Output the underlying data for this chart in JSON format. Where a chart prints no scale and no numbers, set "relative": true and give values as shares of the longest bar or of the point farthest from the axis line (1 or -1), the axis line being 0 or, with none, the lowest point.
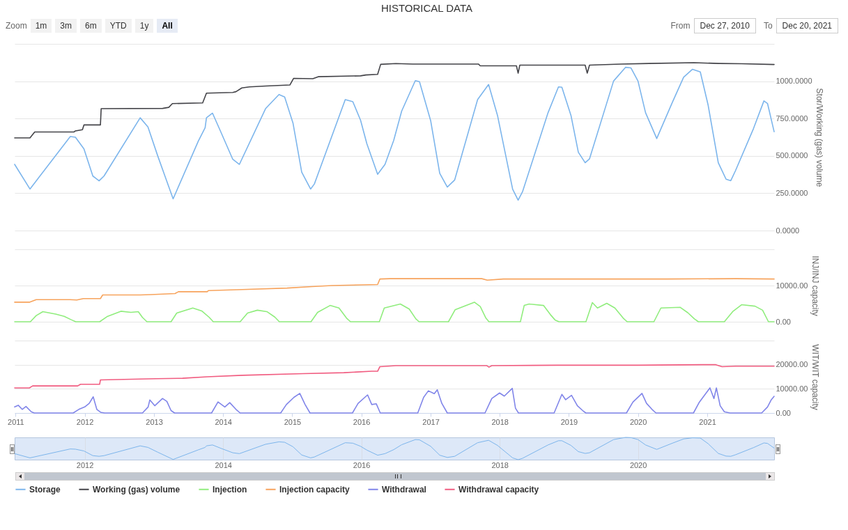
{
  "chart_data": [
    {
      "type": "line",
      "title": "HISTORICAL DATA",
      "annotations": [
        "Zoom",
        "1m",
        "3m",
        "6m",
        "YTD",
        "1y",
        "All",
        "From",
        "Dec 27, 2010",
        "To",
        "Dec 20, 2021"
      ],
      "ylabel": "Stor/Working (gas) volume",
      "xlim": [
        "2010-12-27",
        "2021-12-20"
      ],
      "ylim": [
        0,
        1250
      ],
      "yticks": [
        {
          "value": 0,
          "label": "0.0000"
        },
        {
          "value": 250,
          "label": "250.0000"
        },
        {
          "value": 500,
          "label": "500.0000"
        },
        {
          "value": 750,
          "label": "750.0000"
        },
        {
          "value": 1000,
          "label": "1000.0000"
        },
        {
          "value": 1250,
          "label": null
        }
      ],
      "grid": "y",
      "legend": "bottom",
      "tick_labels": "y",
      "series": [
        {
          "name": "Storage",
          "color": "#7cb5ec",
          "x": [
            "2010-12-27",
            "2011-03-18",
            "2011-10-17",
            "2011-11-13",
            "2011-12-28",
            "2012-02-13",
            "2012-03-17",
            "2012-04-12",
            "2012-10-20",
            "2012-11-30",
            "2013-01-22",
            "2013-04-12",
            "2013-08-23",
            "2013-09-28",
            "2013-10-05",
            "2013-11-06",
            "2013-12-20",
            "2014-02-21",
            "2014-03-28",
            "2014-08-13",
            "2014-10-23",
            "2014-11-22",
            "2015-01-05",
            "2015-02-20",
            "2015-04-08",
            "2015-04-28",
            "2015-10-08",
            "2015-11-17",
            "2015-12-28",
            "2016-01-30",
            "2016-03-27",
            "2016-05-05",
            "2016-06-20",
            "2016-08-01",
            "2016-10-12",
            "2016-11-03",
            "2017-01-01",
            "2017-02-18",
            "2017-03-30",
            "2017-05-08",
            "2017-09-06",
            "2017-11-03",
            "2017-12-20",
            "2018-03-10",
            "2018-04-08",
            "2018-05-01",
            "2018-09-13",
            "2018-11-07",
            "2018-11-25",
            "2019-01-12",
            "2019-02-20",
            "2019-03-28",
            "2019-04-20",
            "2019-08-25",
            "2019-10-27",
            "2019-11-25",
            "2020-01-01",
            "2020-02-10",
            "2020-04-09",
            "2020-07-01",
            "2020-08-29",
            "2020-10-15",
            "2020-11-25",
            "2021-01-05",
            "2021-02-28",
            "2021-04-10",
            "2021-05-05",
            "2021-05-30",
            "2021-09-02",
            "2021-10-27",
            "2021-11-15",
            "2021-12-20"
          ],
          "values": [
            443,
            278,
            630,
            625,
            547,
            365,
            333,
            365,
            755,
            694,
            495,
            212,
            599,
            689,
            755,
            786,
            660,
            477,
            443,
            816,
            911,
            894,
            720,
            391,
            278,
            312,
            877,
            863,
            738,
            582,
            377,
            443,
            604,
            800,
            1004,
            997,
            736,
            383,
            291,
            339,
            877,
            978,
            771,
            277,
            203,
            259,
            789,
            962,
            960,
            771,
            524,
            454,
            480,
            1001,
            1093,
            1089,
            1001,
            789,
            616,
            860,
            1027,
            1080,
            1062,
            842,
            454,
            344,
            334,
            401,
            683,
            868,
            851,
            662
          ]
        },
        {
          "name": "Working (gas) volume",
          "color": "#434348",
          "x": [
            "2010-12-27",
            "2011-03-18",
            "2011-04-12",
            "2011-11-06",
            "2011-11-13",
            "2011-12-20",
            "2011-12-28",
            "2012-03-24",
            "2012-03-28",
            "2013-02-16",
            "2013-03-20",
            "2013-04-08",
            "2013-09-15",
            "2013-10-05",
            "2014-02-21",
            "2014-03-10",
            "2014-04-10",
            "2014-05-20",
            "2014-08-15",
            "2014-12-20",
            "2015-01-08",
            "2015-04-20",
            "2015-05-18",
            "2015-12-28",
            "2016-01-25",
            "2016-03-27",
            "2016-04-12",
            "2016-07-01",
            "2016-09-28",
            "2017-09-10",
            "2017-09-20",
            "2018-03-30",
            "2018-04-08",
            "2018-04-17",
            "2019-03-28",
            "2019-04-08",
            "2019-04-20",
            "2019-10-05",
            "2020-03-01",
            "2020-10-22",
            "2021-03-01",
            "2021-07-01",
            "2021-12-20"
          ],
          "values": [
            620,
            620,
            660,
            660,
            667,
            675,
            707,
            707,
            816,
            818,
            825,
            850,
            855,
            920,
            925,
            930,
            955,
            962,
            968,
            975,
            1019,
            1017,
            1030,
            1036,
            1042,
            1046,
            1113,
            1118,
            1115,
            1115,
            1103,
            1103,
            1054,
            1108,
            1108,
            1054,
            1108,
            1115,
            1119,
            1124,
            1119,
            1117,
            1112
          ]
        }
      ]
    },
    {
      "type": "line",
      "ylabel": "INJ/INJ capacity",
      "xlim": [
        "2010-12-27",
        "2021-12-20"
      ],
      "ylim": [
        0,
        20000
      ],
      "yticks": [
        {
          "value": 0,
          "label": "0.00"
        },
        {
          "value": 10000,
          "label": "10000.00"
        },
        {
          "value": 20000,
          "label": null
        }
      ],
      "grid": "y",
      "legend": "bottom",
      "tick_labels": "y",
      "series": [
        {
          "name": "Injection",
          "color": "#90ed7d",
          "x": [
            "2010-12-27",
            "2011-03-20",
            "2011-04-20",
            "2011-05-25",
            "2011-08-01",
            "2011-09-15",
            "2011-10-20",
            "2011-11-15",
            "2012-03-20",
            "2012-05-01",
            "2012-07-10",
            "2012-09-01",
            "2012-10-10",
            "2012-11-01",
            "2012-11-25",
            "2013-04-01",
            "2013-05-01",
            "2013-07-25",
            "2013-09-10",
            "2013-10-20",
            "2013-11-10",
            "2014-04-01",
            "2014-05-10",
            "2014-07-01",
            "2014-08-20",
            "2014-10-01",
            "2014-10-25",
            "2015-04-10",
            "2015-05-15",
            "2015-07-20",
            "2015-09-05",
            "2015-10-15",
            "2015-11-05",
            "2016-04-05",
            "2016-05-01",
            "2016-07-25",
            "2016-09-10",
            "2016-10-15",
            "2016-11-01",
            "2017-04-05",
            "2017-05-10",
            "2017-08-20",
            "2017-09-20",
            "2017-10-20",
            "2017-11-05",
            "2018-04-20",
            "2018-05-10",
            "2018-06-05",
            "2018-08-20",
            "2018-09-25",
            "2018-10-20",
            "2018-11-10",
            "2019-04-01",
            "2019-05-05",
            "2019-06-01",
            "2019-07-20",
            "2019-09-01",
            "2019-10-15",
            "2019-11-05",
            "2020-03-25",
            "2020-05-01",
            "2020-08-10",
            "2020-09-20",
            "2020-10-25",
            "2020-11-15",
            "2021-04-01",
            "2021-05-15",
            "2021-07-01",
            "2021-09-10",
            "2021-10-20",
            "2021-11-20",
            "2021-12-20"
          ],
          "values": [
            0,
            0,
            1700,
            2800,
            2100,
            1500,
            600,
            0,
            0,
            1500,
            2900,
            2600,
            2800,
            1200,
            0,
            0,
            2400,
            3800,
            3000,
            1200,
            0,
            0,
            2400,
            3200,
            2800,
            1300,
            0,
            0,
            2600,
            4500,
            3800,
            1000,
            0,
            0,
            3800,
            4900,
            3500,
            800,
            0,
            0,
            3300,
            5400,
            4200,
            1000,
            0,
            0,
            4500,
            4900,
            4500,
            2000,
            500,
            0,
            0,
            5300,
            3800,
            5100,
            3800,
            1000,
            0,
            0,
            3800,
            4000,
            2500,
            800,
            0,
            0,
            2800,
            4700,
            4300,
            3200,
            0,
            0
          ]
        },
        {
          "name": "Injection capacity",
          "color": "#f7a35c",
          "x": [
            "2010-12-27",
            "2011-03-15",
            "2011-04-20",
            "2011-10-15",
            "2011-11-20",
            "2011-12-25",
            "2012-03-24",
            "2012-04-05",
            "2012-10-20",
            "2012-12-15",
            "2013-04-22",
            "2013-05-10",
            "2013-10-10",
            "2013-10-15",
            "2014-04-12",
            "2014-12-05",
            "2015-04-15",
            "2015-07-30",
            "2016-03-27",
            "2016-04-08",
            "2016-06-01",
            "2017-09-28",
            "2017-10-27",
            "2018-01-20",
            "2019-06-01",
            "2020-06-01",
            "2021-06-01",
            "2021-12-20"
          ],
          "values": [
            5400,
            5400,
            6100,
            6100,
            6000,
            6400,
            6400,
            7400,
            7400,
            7500,
            7800,
            8300,
            8300,
            8600,
            8900,
            9300,
            9700,
            10000,
            10300,
            11800,
            11900,
            11900,
            11500,
            11800,
            11800,
            11800,
            11900,
            11800
          ]
        }
      ]
    },
    {
      "type": "line",
      "ylabel": "WIT/WIT capacity",
      "xlim": [
        "2010-12-27",
        "2021-12-20"
      ],
      "xticks": [
        "2011",
        "2012",
        "2013",
        "2014",
        "2015",
        "2016",
        "2017",
        "2018",
        "2019",
        "2020",
        "2021"
      ],
      "ylim": [
        0,
        30000
      ],
      "yticks": [
        {
          "value": 0,
          "label": "0.00"
        },
        {
          "value": 10000,
          "label": "10000.00"
        },
        {
          "value": 20000,
          "label": "20000.00"
        },
        {
          "value": 30000,
          "label": null
        }
      ],
      "grid": "y",
      "legend": "bottom",
      "series": [
        {
          "name": "Withdrawal",
          "color": "#8085e9",
          "x": [
            "2010-12-27",
            "2011-01-15",
            "2011-02-05",
            "2011-02-25",
            "2011-03-25",
            "2011-04-10",
            "2011-11-01",
            "2011-12-01",
            "2012-01-01",
            "2012-01-25",
            "2012-02-15",
            "2012-03-05",
            "2012-03-25",
            "2012-04-15",
            "2012-11-01",
            "2012-12-01",
            "2012-12-10",
            "2013-01-05",
            "2013-02-15",
            "2013-03-10",
            "2013-04-01",
            "2013-04-20",
            "2013-11-01",
            "2013-12-05",
            "2014-01-10",
            "2014-02-05",
            "2014-03-10",
            "2014-04-01",
            "2014-11-01",
            "2014-12-01",
            "2015-01-10",
            "2015-02-10",
            "2015-03-10",
            "2015-04-05",
            "2015-11-15",
            "2015-12-15",
            "2016-02-03",
            "2016-02-25",
            "2016-03-20",
            "2016-04-10",
            "2016-10-25",
            "2016-11-25",
            "2016-12-20",
            "2017-01-20",
            "2017-02-05",
            "2017-03-01",
            "2017-03-30",
            "2017-10-15",
            "2017-11-20",
            "2017-12-31",
            "2018-01-25",
            "2018-03-08",
            "2018-03-25",
            "2018-04-10",
            "2018-10-15",
            "2018-11-25",
            "2018-12-15",
            "2019-01-15",
            "2019-02-15",
            "2019-03-15",
            "2019-04-01",
            "2019-11-01",
            "2019-12-05",
            "2020-01-22",
            "2020-02-15",
            "2020-03-15",
            "2020-04-05",
            "2020-10-20",
            "2020-11-20",
            "2021-01-15",
            "2021-02-05",
            "2021-02-18",
            "2021-03-10",
            "2021-04-01",
            "2021-05-01",
            "2021-10-15",
            "2021-11-15",
            "2021-12-05",
            "2021-12-20"
          ],
          "values": [
            2500,
            3200,
            1500,
            2700,
            500,
            0,
            0,
            1500,
            2500,
            4000,
            6700,
            1500,
            300,
            0,
            0,
            2500,
            5400,
            3000,
            6000,
            4800,
            1000,
            0,
            0,
            4600,
            2500,
            4300,
            1500,
            0,
            0,
            3500,
            6500,
            8100,
            3500,
            0,
            0,
            4000,
            7500,
            3500,
            3800,
            0,
            0,
            6500,
            9200,
            8000,
            9600,
            4000,
            0,
            0,
            6000,
            8300,
            7000,
            10200,
            2000,
            0,
            0,
            7700,
            5500,
            7300,
            3000,
            1000,
            0,
            0,
            4500,
            8100,
            4000,
            1500,
            0,
            0,
            4500,
            10400,
            6000,
            10400,
            3000,
            500,
            0,
            0,
            2500,
            5500,
            6900
          ]
        },
        {
          "name": "Withdrawal capacity",
          "color": "#f15c80",
          "x": [
            "2010-12-27",
            "2011-03-15",
            "2011-04-01",
            "2011-11-25",
            "2011-12-10",
            "2012-03-20",
            "2012-03-24",
            "2013-01-10",
            "2013-06-01",
            "2013-10-10",
            "2014-04-12",
            "2015-02-25",
            "2015-10-01",
            "2016-02-25",
            "2016-03-27",
            "2016-04-08",
            "2016-07-01",
            "2017-10-25",
            "2017-11-05",
            "2017-11-20",
            "2018-10-30",
            "2020-01-01",
            "2020-12-05",
            "2021-02-15",
            "2021-03-20",
            "2021-06-01",
            "2021-12-20"
          ],
          "values": [
            10400,
            10400,
            11200,
            11200,
            11900,
            11900,
            13700,
            14200,
            14400,
            15000,
            15600,
            16300,
            16700,
            17300,
            17300,
            19200,
            19600,
            19600,
            19000,
            19600,
            19800,
            19800,
            20000,
            20000,
            19200,
            19400,
            19400
          ]
        }
      ]
    },
    {
      "type": "line",
      "relative": true,
      "xlim": [
        "2010-12-27",
        "2021-12-20"
      ],
      "xticks": [
        "2012",
        "2014",
        "2016",
        "2018",
        "2020"
      ],
      "grid": "x",
      "tick_labels": "x",
      "series": [
        {
          "color": "#7cb5ec",
          "x": [
            "2010-12-27",
            "2011-03-18",
            "2011-10-17",
            "2011-11-13",
            "2011-12-28",
            "2012-02-13",
            "2012-03-17",
            "2012-04-12",
            "2012-10-20",
            "2012-11-30",
            "2013-01-22",
            "2013-04-12",
            "2013-08-23",
            "2013-09-28",
            "2013-10-05",
            "2013-11-06",
            "2013-12-20",
            "2014-02-21",
            "2014-03-28",
            "2014-08-13",
            "2014-10-23",
            "2014-11-22",
            "2015-01-05",
            "2015-02-20",
            "2015-04-08",
            "2015-04-28",
            "2015-10-08",
            "2015-11-17",
            "2015-12-28",
            "2016-01-30",
            "2016-03-27",
            "2016-05-05",
            "2016-06-20",
            "2016-08-01",
            "2016-10-12",
            "2016-11-03",
            "2017-01-01",
            "2017-02-18",
            "2017-03-30",
            "2017-05-08",
            "2017-09-06",
            "2017-11-03",
            "2017-12-20",
            "2018-03-10",
            "2018-04-08",
            "2018-05-01",
            "2018-09-13",
            "2018-11-07",
            "2018-11-25",
            "2019-01-12",
            "2019-02-20",
            "2019-03-28",
            "2019-04-20",
            "2019-08-25",
            "2019-10-27",
            "2019-11-25",
            "2020-01-01",
            "2020-02-10",
            "2020-04-09",
            "2020-07-01",
            "2020-08-29",
            "2020-10-15",
            "2020-11-25",
            "2021-01-05",
            "2021-02-28",
            "2021-04-10",
            "2021-05-05",
            "2021-05-30",
            "2021-09-02",
            "2021-10-27",
            "2021-11-15",
            "2021-12-20"
          ],
          "values": [
            0.27,
            0.08,
            0.48,
            0.47,
            0.39,
            0.18,
            0.15,
            0.18,
            0.62,
            0.55,
            0.33,
            0.01,
            0.44,
            0.55,
            0.62,
            0.66,
            0.51,
            0.31,
            0.27,
            0.69,
            0.8,
            0.78,
            0.58,
            0.21,
            0.08,
            0.12,
            0.76,
            0.74,
            0.6,
            0.43,
            0.2,
            0.27,
            0.45,
            0.67,
            0.9,
            0.89,
            0.6,
            0.2,
            0.1,
            0.15,
            0.76,
            0.87,
            0.64,
            0.08,
            0,
            0.06,
            0.66,
            0.85,
            0.85,
            0.64,
            0.36,
            0.28,
            0.31,
            0.9,
            1,
            0.99,
            0.9,
            0.66,
            0.46,
            0.74,
            0.93,
            0.98,
            0.97,
            0.72,
            0.28,
            0.16,
            0.15,
            0.22,
            0.54,
            0.75,
            0.73,
            0.52
          ]
        }
      ]
    }
  ]
}
